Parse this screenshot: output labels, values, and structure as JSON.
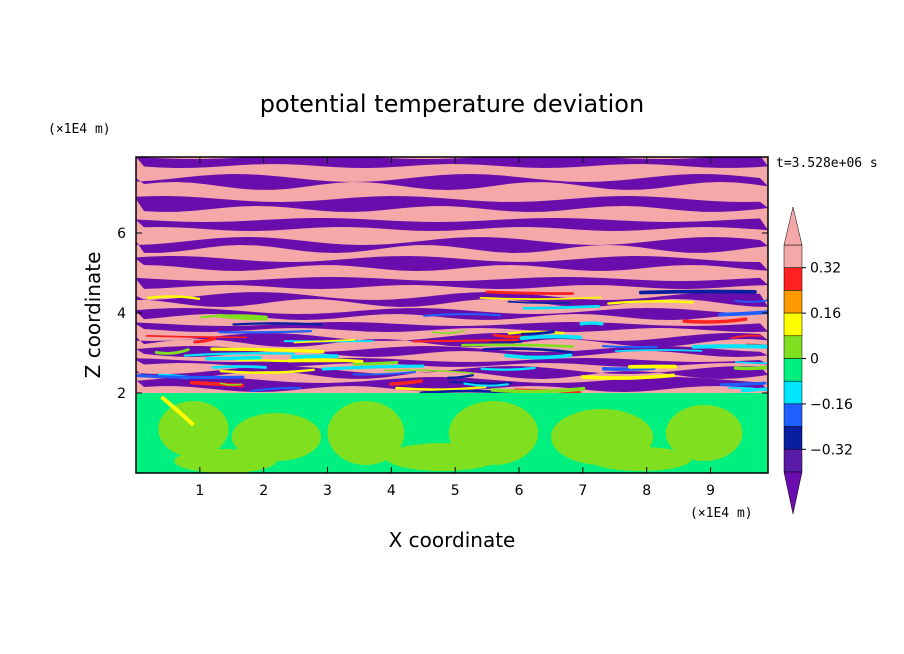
{
  "chart_data": {
    "type": "heatmap",
    "title": "potential temperature deviation",
    "xlabel": "X coordinate",
    "ylabel": "Z coordinate",
    "x_unit": "(×1E4 m)",
    "y_unit": "(×1E4 m)",
    "time_label": "t=3.528e+06 s",
    "xlim": [
      0,
      9.9
    ],
    "ylim": [
      0,
      7.9
    ],
    "x_ticks": [
      1,
      2,
      3,
      4,
      5,
      6,
      7,
      8,
      9
    ],
    "y_ticks": [
      2,
      4,
      6
    ],
    "colorbar": {
      "levels": [
        -0.4,
        -0.32,
        -0.24,
        -0.16,
        -0.08,
        0,
        0.08,
        0.16,
        0.24,
        0.32,
        0.4
      ],
      "colors": [
        "#6a0dad",
        "#5a1ca8",
        "#0a1ea0",
        "#1f5fff",
        "#00e5ff",
        "#00f080",
        "#80e020",
        "#ffff00",
        "#ff9900",
        "#ff2020",
        "#f4a8a8"
      ],
      "under_color": "#6a0dad",
      "over_color": "#f4a8a8",
      "tick_labels": [
        {
          "value": 0.32,
          "label": "0.32"
        },
        {
          "value": 0.16,
          "label": "0.16"
        },
        {
          "value": 0,
          "label": "0"
        },
        {
          "value": -0.16,
          "label": "−0.16"
        },
        {
          "value": -0.32,
          "label": "−0.32"
        }
      ]
    },
    "field_description": {
      "lower_layer_z_max": 2.0,
      "lower_layer_colors": [
        "#00f080",
        "#80e020"
      ],
      "upper_layer_colors": [
        "#6a0dad",
        "#f4a8a8"
      ]
    }
  }
}
